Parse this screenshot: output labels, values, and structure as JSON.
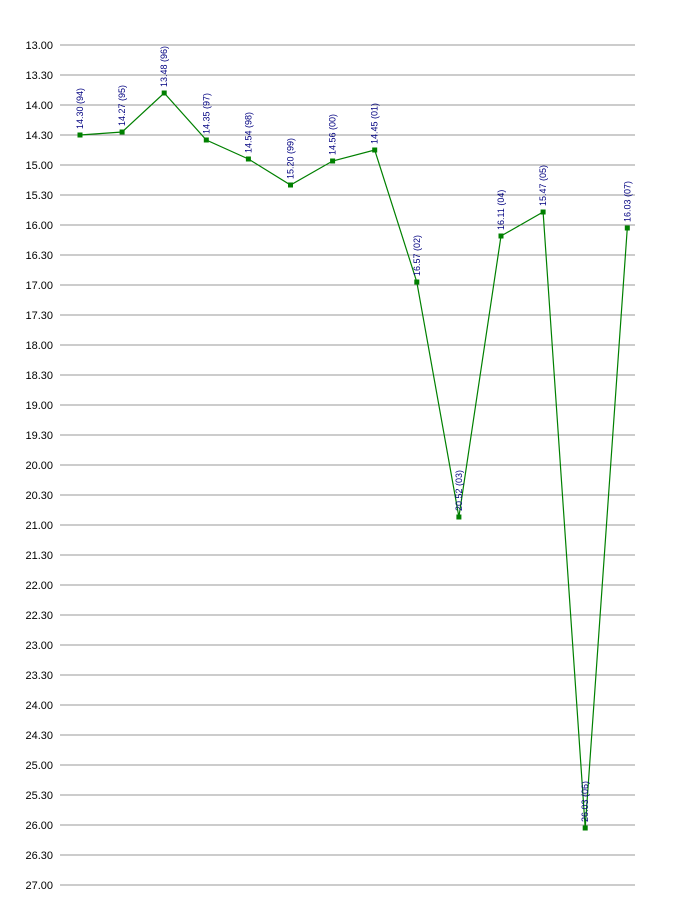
{
  "chart_data": {
    "type": "line",
    "title": "",
    "xlabel": "",
    "ylabel": "",
    "y_reversed": true,
    "ylim": [
      13.0,
      27.0
    ],
    "y_tick_labels": [
      "13.00",
      "13.30",
      "14.00",
      "14.30",
      "15.00",
      "15.30",
      "16.00",
      "16.30",
      "17.00",
      "17.30",
      "18.00",
      "18.30",
      "19.00",
      "19.30",
      "20.00",
      "20.30",
      "21.00",
      "21.30",
      "22.00",
      "22.30",
      "23.00",
      "23.30",
      "24.00",
      "24.30",
      "25.00",
      "25.30",
      "26.00",
      "26.30",
      "27.00"
    ],
    "grid": true,
    "legend": "none",
    "colors": {
      "line": "#008000",
      "marker": "#008000",
      "label": "#000080",
      "grid": "#999999"
    },
    "series": [
      {
        "values": [
          14.3,
          14.27,
          13.48,
          14.35,
          14.54,
          15.2,
          14.56,
          14.45,
          16.57,
          20.52,
          16.11,
          15.47,
          26.03,
          16.03
        ],
        "labels": [
          "14.30 (94)",
          "14.27 (95)",
          "13.48 (96)",
          "14.35 (97)",
          "14.54 (98)",
          "15.20 (99)",
          "14.56 (00)",
          "14.45 (01)",
          "16.57 (02)",
          "20.52 (03)",
          "16.11 (04)",
          "15.47 (05)",
          "26.03 (06)",
          "16.03 (07)"
        ]
      }
    ]
  }
}
